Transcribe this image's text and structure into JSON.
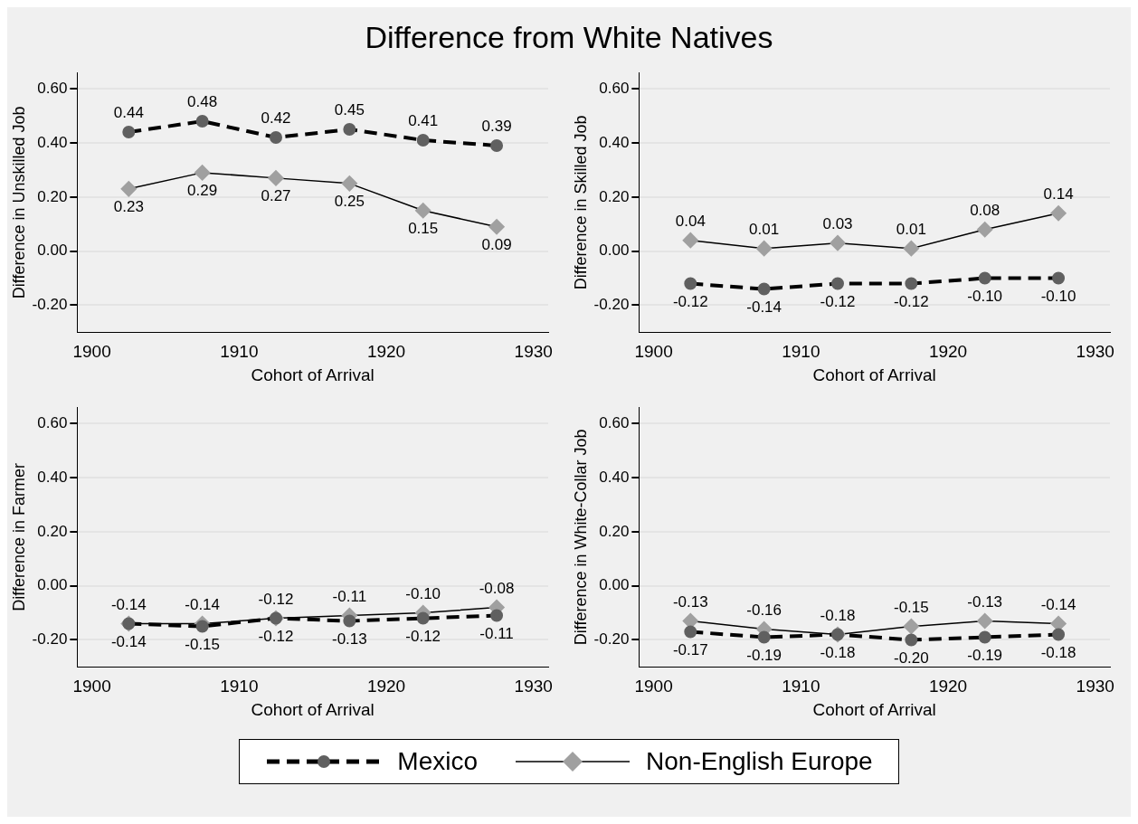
{
  "chart_data": [
    {
      "type": "line",
      "title": "Difference from White Natives",
      "xlabel": "Cohort of Arrival",
      "ylabel": "Difference in Unskilled Job",
      "x": [
        1902.5,
        1907.5,
        1912.5,
        1917.5,
        1922.5,
        1927.5
      ],
      "xlim": [
        1899,
        1931
      ],
      "xticks": [
        1900,
        1910,
        1920,
        1930
      ],
      "ylim": [
        -0.3,
        0.66
      ],
      "yticks": [
        {
          "value": -0.2,
          "label": "-0.20"
        },
        {
          "value": 0,
          "label": "0.00"
        },
        {
          "value": 0.2,
          "label": "0.20"
        },
        {
          "value": 0.4,
          "label": "0.40"
        },
        {
          "value": 0.6,
          "label": "0.60"
        }
      ],
      "grid": "y",
      "legend": "bottom",
      "series": [
        {
          "name": "Mexico",
          "color": "#606060",
          "marker": "circle",
          "line_style": "dashed",
          "values": [
            0.44,
            0.48,
            0.42,
            0.45,
            0.41,
            0.39
          ],
          "value_labels": [
            "0.44",
            "0.48",
            "0.42",
            "0.45",
            "0.41",
            "0.39"
          ]
        },
        {
          "name": "Non-English Europe",
          "color": "#a0a0a0",
          "marker": "diamond",
          "line_style": "solid",
          "values": [
            0.23,
            0.29,
            0.27,
            0.25,
            0.15,
            0.09
          ],
          "value_labels": [
            "0.23",
            "0.29",
            "0.27",
            "0.25",
            "0.15",
            "0.09"
          ]
        }
      ]
    },
    {
      "type": "line",
      "xlabel": "Cohort of Arrival",
      "ylabel": "Difference in Skilled Job",
      "x": [
        1902.5,
        1907.5,
        1912.5,
        1917.5,
        1922.5,
        1927.5
      ],
      "xlim": [
        1899,
        1931
      ],
      "xticks": [
        1900,
        1910,
        1920,
        1930
      ],
      "ylim": [
        -0.3,
        0.66
      ],
      "yticks": [
        {
          "value": -0.2,
          "label": "-0.20"
        },
        {
          "value": 0,
          "label": "0.00"
        },
        {
          "value": 0.2,
          "label": "0.20"
        },
        {
          "value": 0.4,
          "label": "0.40"
        },
        {
          "value": 0.6,
          "label": "0.60"
        }
      ],
      "grid": "y",
      "series": [
        {
          "color": "#606060",
          "marker": "circle",
          "line_style": "dashed",
          "values": [
            -0.12,
            -0.14,
            -0.12,
            -0.12,
            -0.1,
            -0.1
          ],
          "value_labels": [
            "-0.12",
            "-0.14",
            "-0.12",
            "-0.12",
            "-0.10",
            "-0.10"
          ]
        },
        {
          "color": "#a0a0a0",
          "marker": "diamond",
          "line_style": "solid",
          "values": [
            0.04,
            0.01,
            0.03,
            0.01,
            0.08,
            0.14
          ],
          "value_labels": [
            "0.04",
            "0.01",
            "0.03",
            "0.01",
            "0.08",
            "0.14"
          ]
        }
      ]
    },
    {
      "type": "line",
      "xlabel": "Cohort of Arrival",
      "ylabel": "Difference in Farmer",
      "x": [
        1902.5,
        1907.5,
        1912.5,
        1917.5,
        1922.5,
        1927.5
      ],
      "xlim": [
        1899,
        1931
      ],
      "xticks": [
        1900,
        1910,
        1920,
        1930
      ],
      "ylim": [
        -0.3,
        0.66
      ],
      "yticks": [
        {
          "value": -0.2,
          "label": "-0.20"
        },
        {
          "value": 0,
          "label": "0.00"
        },
        {
          "value": 0.2,
          "label": "0.20"
        },
        {
          "value": 0.4,
          "label": "0.40"
        },
        {
          "value": 0.6,
          "label": "0.60"
        }
      ],
      "grid": "y",
      "series": [
        {
          "color": "#606060",
          "marker": "circle",
          "line_style": "dashed",
          "values": [
            -0.14,
            -0.15,
            -0.12,
            -0.13,
            -0.12,
            -0.11
          ],
          "value_labels": [
            "-0.14",
            "-0.15",
            "-0.12",
            "-0.13",
            "-0.12",
            "-0.11"
          ]
        },
        {
          "color": "#a0a0a0",
          "marker": "diamond",
          "line_style": "solid",
          "values": [
            -0.14,
            -0.14,
            -0.12,
            -0.11,
            -0.1,
            -0.08
          ],
          "value_labels": [
            "-0.14",
            "-0.14",
            "-0.12",
            "-0.11",
            "-0.10",
            "-0.08"
          ]
        }
      ]
    },
    {
      "type": "line",
      "xlabel": "Cohort of Arrival",
      "ylabel": "Difference in White-Collar Job",
      "x": [
        1902.5,
        1907.5,
        1912.5,
        1917.5,
        1922.5,
        1927.5
      ],
      "xlim": [
        1899,
        1931
      ],
      "xticks": [
        1900,
        1910,
        1920,
        1930
      ],
      "ylim": [
        -0.3,
        0.66
      ],
      "yticks": [
        {
          "value": -0.2,
          "label": "-0.20"
        },
        {
          "value": 0,
          "label": "0.00"
        },
        {
          "value": 0.2,
          "label": "0.20"
        },
        {
          "value": 0.4,
          "label": "0.40"
        },
        {
          "value": 0.6,
          "label": "0.60"
        }
      ],
      "grid": "y",
      "series": [
        {
          "color": "#606060",
          "marker": "circle",
          "line_style": "dashed",
          "values": [
            -0.17,
            -0.19,
            -0.18,
            -0.2,
            -0.19,
            -0.18
          ],
          "value_labels": [
            "-0.17",
            "-0.19",
            "-0.18",
            "-0.20",
            "-0.19",
            "-0.18"
          ]
        },
        {
          "color": "#a0a0a0",
          "marker": "diamond",
          "line_style": "solid",
          "values": [
            -0.13,
            -0.16,
            -0.18,
            -0.15,
            -0.13,
            -0.14
          ],
          "value_labels": [
            "-0.13",
            "-0.16",
            "-0.18",
            "-0.15",
            "-0.13",
            "-0.14"
          ]
        }
      ]
    }
  ]
}
